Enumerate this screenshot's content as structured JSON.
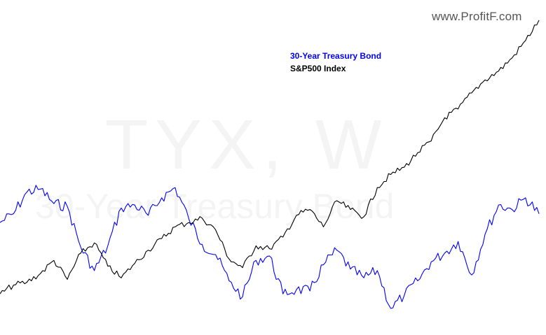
{
  "brand": {
    "text": "www.ProfitF.com"
  },
  "watermark": {
    "symbol": "TYX, W",
    "name": "30-Year Treasury Bond"
  },
  "chart_data": {
    "type": "line",
    "grid": false,
    "axes_visible": false,
    "legend_position": "top-center",
    "x": [
      0,
      1,
      2,
      3,
      4,
      5,
      6,
      7,
      8,
      9,
      10,
      11,
      12,
      13,
      14,
      15,
      16,
      17,
      18,
      19,
      20,
      21,
      22,
      23,
      24,
      25,
      26,
      27,
      28,
      29,
      30,
      31,
      32,
      33,
      34,
      35,
      36,
      37,
      38,
      39,
      40
    ],
    "series": [
      {
        "name": "30-Year Treasury Bond",
        "color": "#0000ff",
        "values": [
          61,
          67,
          82,
          84,
          74,
          72,
          44,
          28,
          45,
          71,
          73,
          66,
          78,
          85,
          64,
          46,
          39,
          21,
          10,
          35,
          38,
          12,
          15,
          14,
          32,
          42,
          29,
          23,
          28,
          2,
          11,
          21,
          34,
          40,
          48,
          25,
          53,
          73,
          70,
          78,
          67
        ]
      },
      {
        "name": "S&P500 Index",
        "color": "#000000",
        "values": [
          12,
          18,
          20,
          26,
          35,
          22,
          40,
          47,
          31,
          23,
          33,
          42,
          50,
          58,
          61,
          64,
          56,
          36,
          30,
          45,
          43,
          51,
          66,
          70,
          58,
          76,
          70,
          65,
          85,
          94,
          99,
          109,
          117,
          133,
          139,
          150,
          159,
          165,
          174,
          186,
          200
        ]
      }
    ],
    "ylim": [
      -10,
      210
    ]
  }
}
